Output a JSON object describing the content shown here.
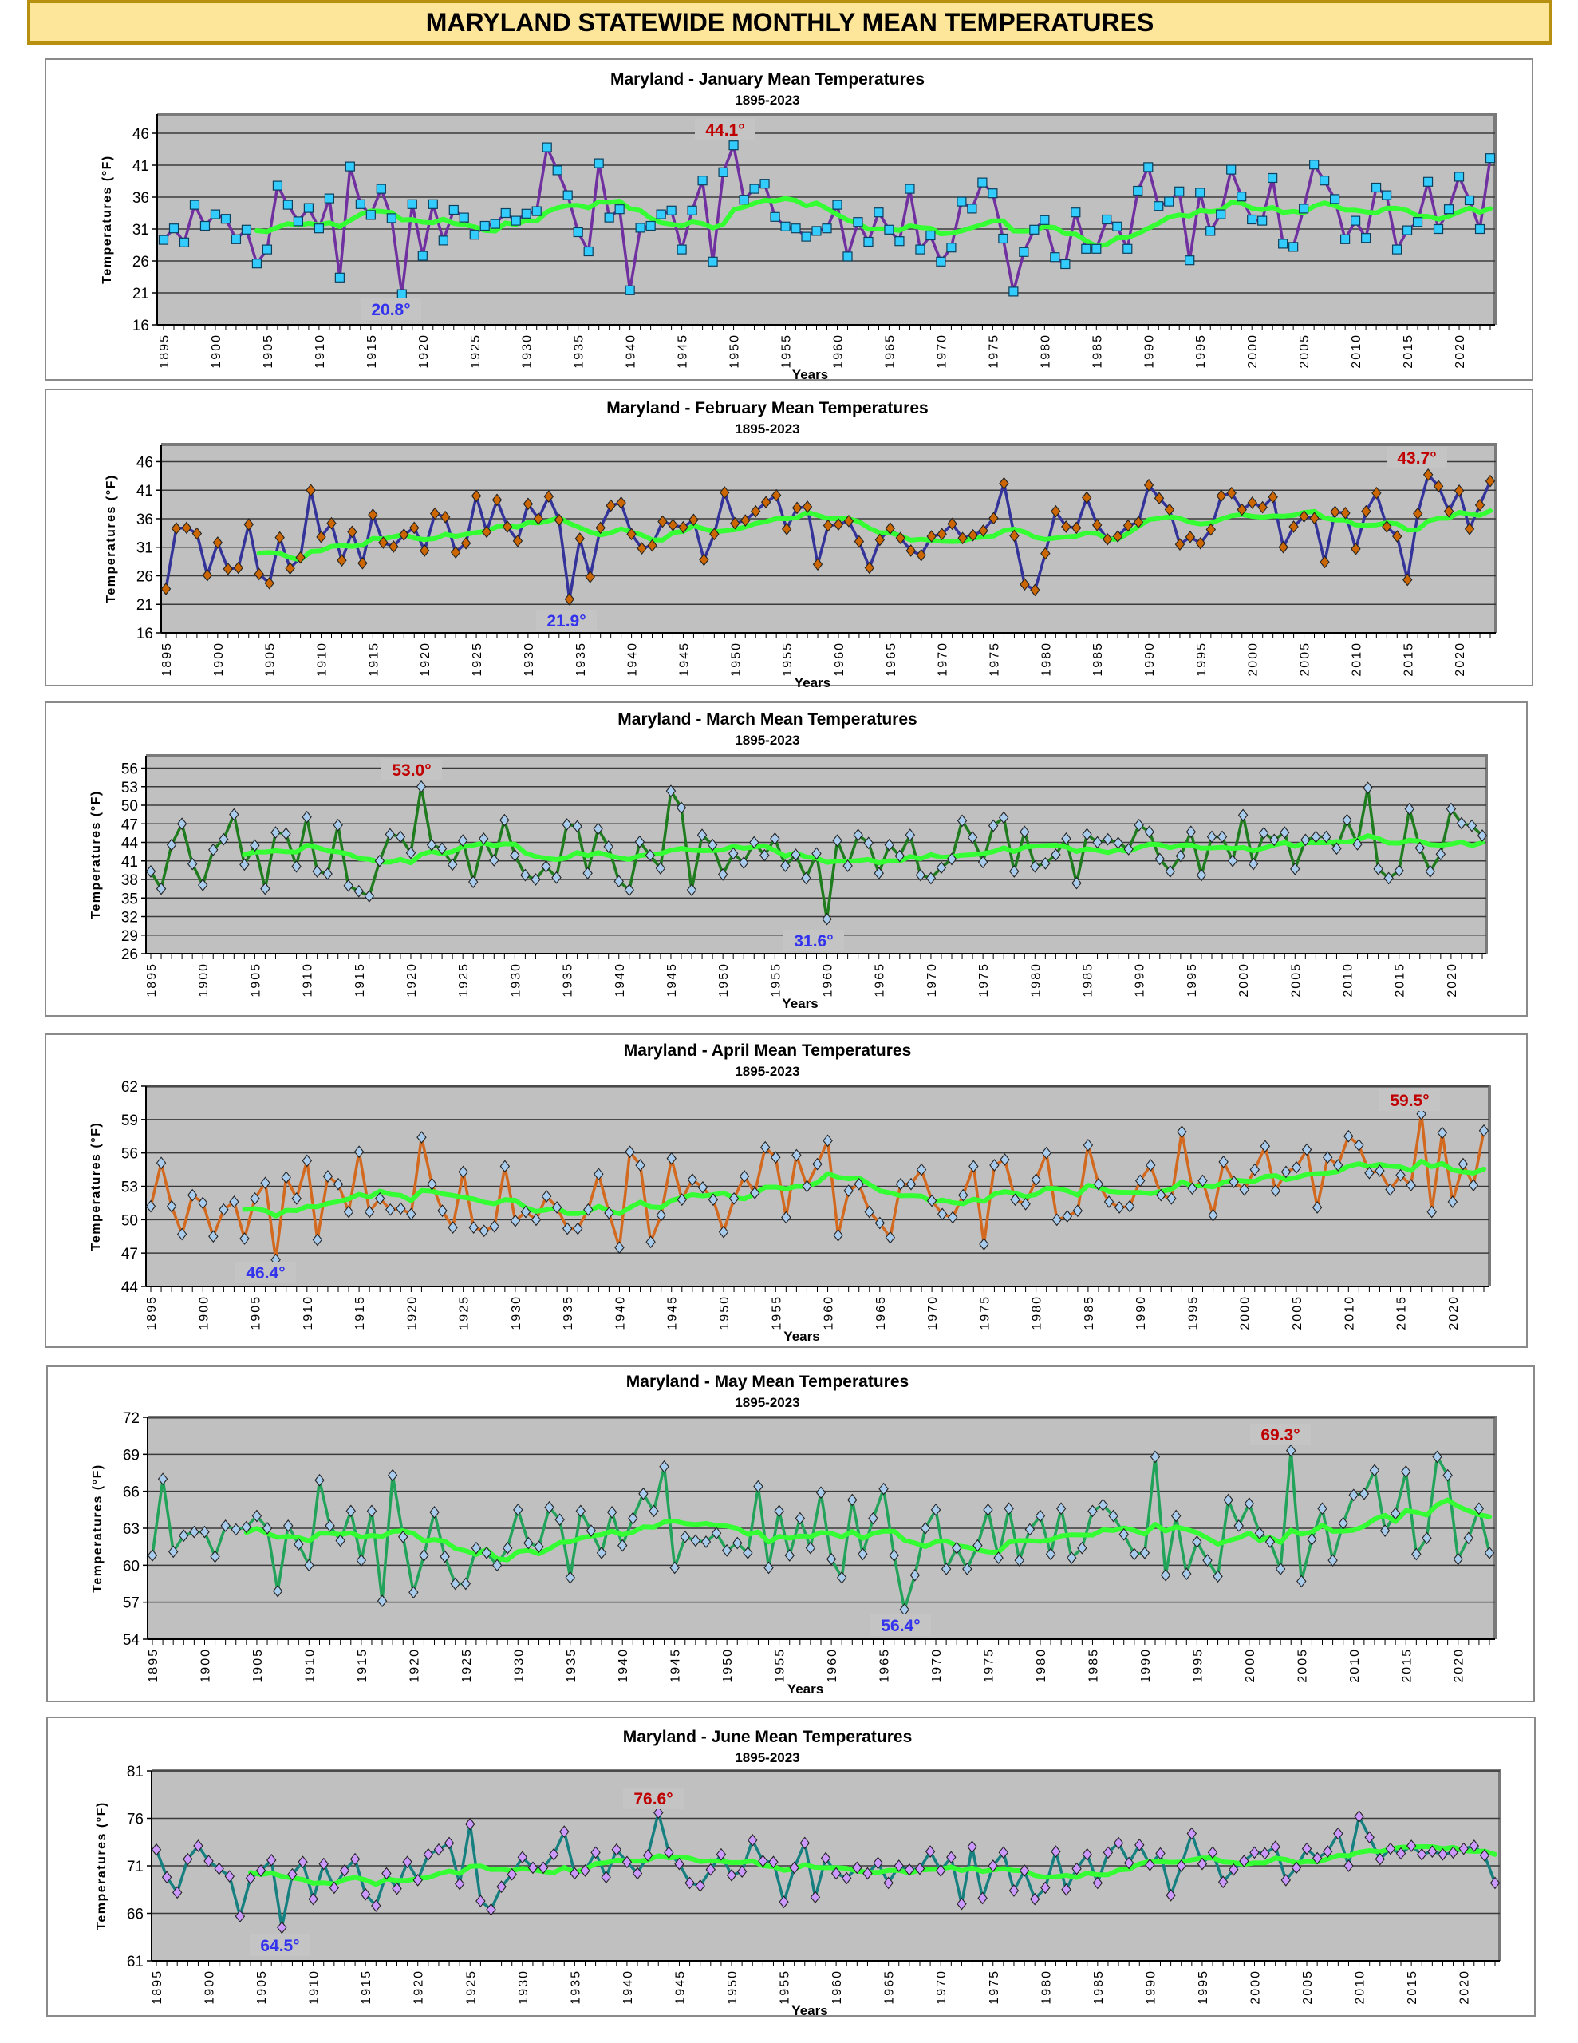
{
  "page_title": "MARYLAND STATEWIDE MONTHLY MEAN TEMPERATURES",
  "trend_color": "#33ff33",
  "plot_bg": "#c0c0c0",
  "chart_data": [
    {
      "type": "line",
      "title": "Maryland - January Mean Temperatures",
      "subtitle": "1895-2023",
      "xlabel": "Years",
      "ylabel": "Temperatures (°F)",
      "x_start": 1895,
      "x_end": 2023,
      "ylim": [
        16,
        49
      ],
      "yticks": [
        "16",
        "21",
        "26",
        "31",
        "36",
        "41",
        "46"
      ],
      "xticks": [
        "1895",
        "1900",
        "1905",
        "1910",
        "1915",
        "1920",
        "1925",
        "1930",
        "1935",
        "1940",
        "1945",
        "1950",
        "1955",
        "1960",
        "1965",
        "1970",
        "1975",
        "1980",
        "1985",
        "1990",
        "1995",
        "2000",
        "2005",
        "2010",
        "2015",
        "2020"
      ],
      "line_color": "#7030a0",
      "marker_color": "#33ccff",
      "marker": "square",
      "annotations": {
        "max": {
          "text": "44.1°",
          "year": 1950
        },
        "min": {
          "text": "20.8°",
          "year": 1918
        }
      },
      "values": [
        29.3,
        31.1,
        28.9,
        34.8,
        31.5,
        33.3,
        32.6,
        29.4,
        30.9,
        25.6,
        27.8,
        37.8,
        34.8,
        32.2,
        34.3,
        31.1,
        35.8,
        23.4,
        40.8,
        34.9,
        33.2,
        37.3,
        32.7,
        20.8,
        34.9,
        26.8,
        34.9,
        29.2,
        34.0,
        32.8,
        30.1,
        31.5,
        31.8,
        33.5,
        32.3,
        33.4,
        33.8,
        43.8,
        40.2,
        36.3,
        30.5,
        27.5,
        41.3,
        32.8,
        34.1,
        21.4,
        31.2,
        31.5,
        33.3,
        33.9,
        27.8,
        33.9,
        38.6,
        25.9,
        39.9,
        44.1,
        35.6,
        37.3,
        38.1,
        32.9,
        31.4,
        31.1,
        29.8,
        30.7,
        31.1,
        34.8,
        26.7,
        32.1,
        29.0,
        33.6,
        30.9,
        29.1,
        37.3,
        27.8,
        30.0,
        25.9,
        28.1,
        35.3,
        34.2,
        38.3,
        36.6,
        29.5,
        21.2,
        27.4,
        30.9,
        32.4,
        26.6,
        25.5,
        33.6,
        27.9,
        27.9,
        32.5,
        31.4,
        27.9,
        37.0,
        40.7,
        34.6,
        35.3,
        36.9,
        26.1,
        36.7,
        30.7,
        33.3,
        40.3,
        36.1,
        32.5,
        32.3,
        39.0,
        28.7,
        28.2,
        34.2,
        41.1,
        38.6,
        35.7,
        29.4,
        32.3,
        29.6,
        37.5,
        36.3,
        27.8,
        30.8,
        32.1,
        38.4,
        31.0,
        34.1,
        39.2,
        35.5,
        31.0,
        42.1
      ]
    },
    {
      "type": "line",
      "title": "Maryland - February Mean Temperatures",
      "subtitle": "1895-2023",
      "xlabel": "Years",
      "ylabel": "Temperatures (°F)",
      "x_start": 1895,
      "x_end": 2023,
      "ylim": [
        16,
        49
      ],
      "yticks": [
        "16",
        "21",
        "26",
        "31",
        "36",
        "41",
        "46"
      ],
      "xticks": [
        "1895",
        "1900",
        "1905",
        "1910",
        "1915",
        "1920",
        "1925",
        "1930",
        "1935",
        "1940",
        "1945",
        "1950",
        "1955",
        "1960",
        "1965",
        "1970",
        "1975",
        "1980",
        "1985",
        "1990",
        "1995",
        "2000",
        "2005",
        "2010",
        "2015",
        "2020"
      ],
      "line_color": "#333399",
      "marker_color": "#cc6600",
      "marker": "diamond",
      "annotations": {
        "max": {
          "text": "43.7°",
          "year": 2017
        },
        "min": {
          "text": "21.9°",
          "year": 1934
        }
      },
      "values": [
        23.7,
        34.3,
        34.4,
        33.4,
        26.1,
        31.8,
        27.2,
        27.4,
        35.0,
        26.3,
        24.7,
        32.7,
        27.3,
        29.2,
        41.0,
        32.8,
        35.2,
        28.7,
        33.7,
        28.2,
        36.7,
        31.8,
        31.1,
        33.2,
        34.4,
        30.4,
        36.9,
        36.3,
        30.1,
        31.7,
        40.0,
        33.7,
        39.3,
        34.6,
        32.1,
        38.6,
        36.0,
        39.9,
        35.8,
        21.9,
        32.5,
        25.8,
        34.4,
        38.3,
        38.8,
        33.3,
        30.8,
        31.3,
        35.5,
        34.9,
        34.5,
        35.8,
        28.8,
        33.3,
        40.6,
        35.2,
        35.7,
        37.3,
        38.9,
        40.1,
        34.2,
        37.9,
        38.1,
        28.0,
        34.8,
        35.0,
        35.6,
        32.0,
        27.4,
        32.3,
        34.3,
        32.6,
        30.4,
        29.6,
        32.9,
        33.3,
        35.1,
        32.6,
        33.1,
        33.9,
        36.1,
        42.2,
        33.0,
        24.5,
        23.5,
        29.9,
        37.3,
        34.6,
        34.4,
        39.7,
        34.9,
        32.4,
        32.9,
        34.8,
        35.4,
        41.9,
        39.6,
        37.6,
        31.5,
        32.8,
        31.7,
        34.1,
        40.0,
        40.5,
        37.6,
        38.8,
        38.0,
        39.8,
        31.0,
        34.6,
        36.4,
        36.1,
        28.4,
        37.2,
        37.0,
        30.7,
        37.3,
        40.5,
        34.6,
        32.9,
        25.3,
        36.9,
        43.7,
        41.7,
        37.3,
        40.9,
        34.2,
        38.4,
        42.6
      ]
    },
    {
      "type": "line",
      "title": "Maryland - March Mean Temperatures",
      "subtitle": "1895-2023",
      "xlabel": "Years",
      "ylabel": "Temperatures (°F)",
      "x_start": 1895,
      "x_end": 2023,
      "ylim": [
        26,
        58
      ],
      "yticks": [
        "26",
        "29",
        "32",
        "35",
        "38",
        "41",
        "44",
        "47",
        "50",
        "53",
        "56"
      ],
      "xticks": [
        "1895",
        "1900",
        "1905",
        "1910",
        "1915",
        "1920",
        "1925",
        "1930",
        "1935",
        "1940",
        "1945",
        "1950",
        "1955",
        "1960",
        "1965",
        "1970",
        "1975",
        "1980",
        "1985",
        "1990",
        "1995",
        "2000",
        "2005",
        "2010",
        "2015",
        "2020"
      ],
      "line_color": "#1e7b1e",
      "marker_color": "#a9cbec",
      "marker": "diamond",
      "annotations": {
        "max": {
          "text": "53.0°",
          "year": 1921
        },
        "min": {
          "text": "31.6°",
          "year": 1960
        }
      },
      "values": [
        39.3,
        36.5,
        43.6,
        47.0,
        40.5,
        37.1,
        42.8,
        44.5,
        48.5,
        40.4,
        43.5,
        36.5,
        45.6,
        45.4,
        40.1,
        48.1,
        39.3,
        38.9,
        46.8,
        37.0,
        36.1,
        35.3,
        41.0,
        45.3,
        44.9,
        42.3,
        53.0,
        43.6,
        43.0,
        40.4,
        44.3,
        37.6,
        44.6,
        41.1,
        47.6,
        41.9,
        38.7,
        38.0,
        40.1,
        38.3,
        46.9,
        46.6,
        39.0,
        46.2,
        43.3,
        37.7,
        36.3,
        44.1,
        41.9,
        39.8,
        52.3,
        49.6,
        36.3,
        45.2,
        43.6,
        38.8,
        42.2,
        40.7,
        44.0,
        41.9,
        44.6,
        40.2,
        42.0,
        38.2,
        42.2,
        31.6,
        44.3,
        40.2,
        45.2,
        43.9,
        39.0,
        43.6,
        41.8,
        45.2,
        38.7,
        38.2,
        39.9,
        41.3,
        47.5,
        44.8,
        40.8,
        46.7,
        48.0,
        39.3,
        45.7,
        40.1,
        40.6,
        42.0,
        44.6,
        37.4,
        45.3,
        44.0,
        44.5,
        43.9,
        42.9,
        46.8,
        45.7,
        41.3,
        39.3,
        41.8,
        45.7,
        38.7,
        44.9,
        44.9,
        41.0,
        48.4,
        40.5,
        45.5,
        44.4,
        45.6,
        39.7,
        44.4,
        44.9,
        44.9,
        43.0,
        47.6,
        43.7,
        52.8,
        39.7,
        38.2,
        39.4,
        49.4,
        43.1,
        39.3,
        42.1,
        49.4,
        47.1,
        46.7,
        45.1
      ]
    },
    {
      "type": "line",
      "title": "Maryland - April Mean Temperatures",
      "subtitle": "1895-2023",
      "xlabel": "Years",
      "ylabel": "Temperatures (°F)",
      "x_start": 1895,
      "x_end": 2023,
      "ylim": [
        44,
        62
      ],
      "yticks": [
        "44",
        "47",
        "50",
        "53",
        "56",
        "59",
        "62"
      ],
      "xticks": [
        "1895",
        "1900",
        "1905",
        "1910",
        "1915",
        "1920",
        "1925",
        "1930",
        "1935",
        "1940",
        "1945",
        "1950",
        "1955",
        "1960",
        "1965",
        "1970",
        "1975",
        "1980",
        "1985",
        "1990",
        "1995",
        "2000",
        "2005",
        "2010",
        "2015",
        "2020"
      ],
      "line_color": "#d2691e",
      "marker_color": "#a9cbec",
      "marker": "diamond",
      "annotations": {
        "max": {
          "text": "59.5°",
          "year": 2017
        },
        "min": {
          "text": "46.4°",
          "year": 1907
        }
      },
      "values": [
        51.2,
        55.1,
        51.2,
        48.7,
        52.2,
        51.5,
        48.5,
        50.9,
        51.6,
        48.3,
        51.9,
        53.3,
        46.4,
        53.8,
        51.9,
        55.3,
        48.2,
        53.9,
        53.2,
        50.7,
        56.1,
        50.7,
        51.9,
        50.9,
        51.0,
        50.5,
        57.4,
        53.2,
        50.8,
        49.3,
        54.3,
        49.3,
        49.0,
        49.4,
        54.8,
        49.9,
        50.7,
        50.0,
        52.1,
        51.1,
        49.2,
        49.2,
        50.9,
        54.1,
        50.6,
        47.5,
        56.1,
        54.9,
        48.0,
        50.4,
        55.5,
        51.8,
        53.6,
        52.9,
        51.8,
        48.9,
        51.9,
        53.9,
        52.4,
        56.5,
        55.6,
        50.2,
        55.8,
        53.0,
        55.0,
        57.1,
        48.6,
        52.6,
        53.2,
        50.7,
        49.7,
        48.4,
        53.2,
        53.2,
        54.5,
        51.7,
        50.5,
        50.2,
        52.2,
        54.8,
        47.8,
        54.9,
        55.4,
        51.8,
        51.4,
        53.6,
        56.0,
        50.0,
        50.3,
        50.8,
        56.7,
        53.2,
        51.6,
        51.1,
        51.2,
        53.5,
        54.9,
        52.2,
        51.9,
        57.9,
        52.8,
        53.5,
        50.4,
        55.2,
        53.4,
        52.7,
        54.5,
        56.6,
        52.6,
        54.3,
        54.7,
        56.3,
        51.1,
        55.6,
        54.9,
        57.5,
        56.7,
        54.2,
        54.4,
        52.7,
        54.0,
        53.1,
        59.5,
        50.7,
        57.8,
        51.6,
        55.0,
        53.1,
        58.0
      ]
    },
    {
      "type": "line",
      "title": "Maryland - May Mean Temperatures",
      "subtitle": "1895-2023",
      "xlabel": "Years",
      "ylabel": "Temperatures (°F)",
      "x_start": 1895,
      "x_end": 2023,
      "ylim": [
        54,
        72
      ],
      "yticks": [
        "54",
        "57",
        "60",
        "63",
        "66",
        "69",
        "72"
      ],
      "xticks": [
        "1895",
        "1900",
        "1905",
        "1910",
        "1915",
        "1920",
        "1925",
        "1930",
        "1935",
        "1940",
        "1945",
        "1950",
        "1955",
        "1960",
        "1965",
        "1970",
        "1975",
        "1980",
        "1985",
        "1990",
        "1995",
        "2000",
        "2005",
        "2010",
        "2015",
        "2020"
      ],
      "line_color": "#22a35a",
      "marker_color": "#a9cbec",
      "marker": "diamond",
      "annotations": {
        "max": {
          "text": "69.3°",
          "year": 2004
        },
        "min": {
          "text": "56.4°",
          "year": 1967
        }
      },
      "values": [
        60.8,
        67.0,
        61.1,
        62.4,
        62.7,
        62.7,
        60.7,
        63.2,
        62.9,
        63.1,
        64.0,
        63.0,
        57.9,
        63.2,
        61.7,
        60.0,
        66.9,
        63.2,
        62.0,
        64.4,
        60.4,
        64.4,
        57.1,
        67.3,
        62.3,
        57.8,
        60.8,
        64.3,
        60.7,
        58.5,
        58.5,
        61.4,
        61.0,
        60.0,
        61.4,
        64.5,
        61.8,
        61.5,
        64.7,
        63.7,
        59.0,
        64.4,
        62.8,
        61.0,
        64.3,
        61.6,
        63.8,
        65.8,
        64.4,
        68.0,
        59.8,
        62.3,
        62.0,
        61.9,
        62.6,
        61.2,
        61.8,
        61.0,
        66.4,
        59.8,
        64.4,
        60.8,
        63.8,
        61.4,
        65.9,
        60.5,
        59.0,
        65.3,
        60.9,
        63.8,
        66.2,
        60.8,
        56.4,
        59.2,
        63.0,
        64.5,
        59.7,
        61.4,
        59.7,
        61.6,
        64.5,
        60.6,
        64.6,
        60.4,
        62.9,
        64.0,
        60.9,
        64.6,
        60.6,
        61.4,
        64.4,
        64.9,
        64.0,
        62.5,
        60.9,
        61.0,
        68.8,
        59.2,
        64.0,
        59.3,
        61.9,
        60.4,
        59.1,
        65.3,
        63.2,
        65.0,
        62.6,
        61.9,
        59.7,
        69.3,
        58.7,
        62.1,
        64.6,
        60.4,
        63.4,
        65.7,
        65.8,
        67.7,
        62.8,
        64.2,
        67.6,
        60.9,
        62.2,
        68.8,
        67.3,
        60.5,
        62.2,
        64.6,
        61.0
      ]
    },
    {
      "type": "line",
      "title": "Maryland - June Mean Temperatures",
      "subtitle": "1895-2023",
      "xlabel": "Years",
      "ylabel": "Temperatures (°F)",
      "x_start": 1895,
      "x_end": 2023,
      "ylim": [
        61,
        81
      ],
      "yticks": [
        "61",
        "66",
        "71",
        "76",
        "81"
      ],
      "xticks": [
        "1895",
        "1900",
        "1905",
        "1910",
        "1915",
        "1920",
        "1925",
        "1930",
        "1935",
        "1940",
        "1945",
        "1950",
        "1955",
        "1960",
        "1965",
        "1970",
        "1975",
        "1980",
        "1985",
        "1990",
        "1995",
        "2000",
        "2005",
        "2010",
        "2015",
        "2020"
      ],
      "line_color": "#168080",
      "marker_color": "#cc99ff",
      "marker": "diamond",
      "annotations": {
        "max": {
          "text": "76.6°",
          "year": 1943
        },
        "min": {
          "text": "64.5°",
          "year": 1907
        }
      },
      "values": [
        72.7,
        69.8,
        68.2,
        71.7,
        73.1,
        71.5,
        70.7,
        69.9,
        65.7,
        69.7,
        70.5,
        71.6,
        64.5,
        70.1,
        71.4,
        67.5,
        71.2,
        68.7,
        70.5,
        71.7,
        68.0,
        66.8,
        70.2,
        68.6,
        71.4,
        69.5,
        72.2,
        72.7,
        73.4,
        69.1,
        75.4,
        67.3,
        66.4,
        68.8,
        70.1,
        71.9,
        70.8,
        70.8,
        72.2,
        74.6,
        70.2,
        70.5,
        72.4,
        69.8,
        72.7,
        71.4,
        70.2,
        72.1,
        76.6,
        72.4,
        71.2,
        69.2,
        68.9,
        70.6,
        72.2,
        70.0,
        70.4,
        73.7,
        71.5,
        71.4,
        67.2,
        70.8,
        73.4,
        67.7,
        71.8,
        70.2,
        69.7,
        70.8,
        70.2,
        71.3,
        69.2,
        71.0,
        70.6,
        70.7,
        72.5,
        70.5,
        71.9,
        67.0,
        73.0,
        67.6,
        71.0,
        72.4,
        68.4,
        70.5,
        67.5,
        68.7,
        72.5,
        68.5,
        70.7,
        72.2,
        69.2,
        72.4,
        73.4,
        71.3,
        73.2,
        71.1,
        72.3,
        67.9,
        71.0,
        74.4,
        71.2,
        72.4,
        69.3,
        70.6,
        71.5,
        72.4,
        72.3,
        73.0,
        69.5,
        70.8,
        72.8,
        71.8,
        72.5,
        74.4,
        71.0,
        76.2,
        74.0,
        71.7,
        72.8,
        72.3,
        73.1,
        72.2,
        72.5,
        72.2,
        72.4,
        72.8,
        73.1,
        72.1,
        69.2
      ]
    }
  ]
}
